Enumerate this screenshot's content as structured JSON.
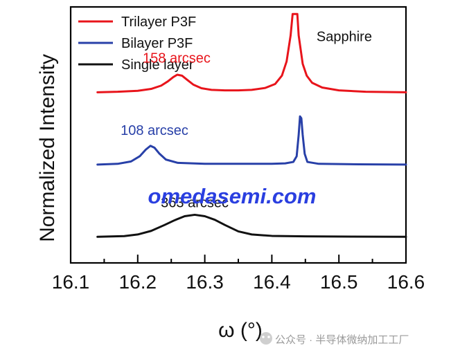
{
  "chart_data": {
    "type": "line",
    "xlabel": "ω (°)",
    "ylabel": "Normalized Intensity",
    "xlim": [
      16.1,
      16.6
    ],
    "x_ticks": [
      "16.1",
      "16.2",
      "16.3",
      "16.4",
      "16.5",
      "16.6"
    ],
    "y_ticks_visible": false,
    "legend_position": "top-left",
    "series": [
      {
        "name": "Trilayer P3F",
        "color": "#e8141b",
        "baseline": 0.72,
        "points": [
          [
            16.14,
            0.72
          ],
          [
            16.17,
            0.722
          ],
          [
            16.2,
            0.726
          ],
          [
            16.22,
            0.734
          ],
          [
            16.235,
            0.748
          ],
          [
            16.245,
            0.766
          ],
          [
            16.253,
            0.784
          ],
          [
            16.259,
            0.794
          ],
          [
            16.266,
            0.79
          ],
          [
            16.274,
            0.772
          ],
          [
            16.283,
            0.752
          ],
          [
            16.295,
            0.737
          ],
          [
            16.31,
            0.73
          ],
          [
            16.33,
            0.728
          ],
          [
            16.35,
            0.728
          ],
          [
            16.37,
            0.73
          ],
          [
            16.39,
            0.738
          ],
          [
            16.405,
            0.755
          ],
          [
            16.415,
            0.79
          ],
          [
            16.422,
            0.85
          ],
          [
            16.428,
            0.96
          ],
          [
            16.431,
            1.05
          ],
          [
            16.438,
            1.05
          ],
          [
            16.44,
            0.96
          ],
          [
            16.446,
            0.84
          ],
          [
            16.452,
            0.79
          ],
          [
            16.46,
            0.76
          ],
          [
            16.475,
            0.74
          ],
          [
            16.5,
            0.728
          ],
          [
            16.54,
            0.722
          ],
          [
            16.6,
            0.72
          ]
        ]
      },
      {
        "name": "Bilayer P3F",
        "color": "#2840a8",
        "baseline": 0.415,
        "points": [
          [
            16.14,
            0.415
          ],
          [
            16.17,
            0.418
          ],
          [
            16.19,
            0.428
          ],
          [
            16.203,
            0.45
          ],
          [
            16.212,
            0.478
          ],
          [
            16.219,
            0.494
          ],
          [
            16.225,
            0.486
          ],
          [
            16.232,
            0.462
          ],
          [
            16.242,
            0.436
          ],
          [
            16.26,
            0.422
          ],
          [
            16.3,
            0.418
          ],
          [
            16.35,
            0.418
          ],
          [
            16.4,
            0.418
          ],
          [
            16.42,
            0.42
          ],
          [
            16.432,
            0.426
          ],
          [
            16.437,
            0.45
          ],
          [
            16.44,
            0.54
          ],
          [
            16.442,
            0.618
          ],
          [
            16.444,
            0.61
          ],
          [
            16.446,
            0.54
          ],
          [
            16.449,
            0.46
          ],
          [
            16.453,
            0.426
          ],
          [
            16.47,
            0.418
          ],
          [
            16.53,
            0.416
          ],
          [
            16.6,
            0.415
          ]
        ]
      },
      {
        "name": "Single layer",
        "color": "#111111",
        "baseline": 0.11,
        "points": [
          [
            16.14,
            0.11
          ],
          [
            16.18,
            0.113
          ],
          [
            16.2,
            0.12
          ],
          [
            16.22,
            0.135
          ],
          [
            16.24,
            0.16
          ],
          [
            16.255,
            0.18
          ],
          [
            16.27,
            0.197
          ],
          [
            16.285,
            0.203
          ],
          [
            16.3,
            0.197
          ],
          [
            16.315,
            0.182
          ],
          [
            16.33,
            0.16
          ],
          [
            16.35,
            0.133
          ],
          [
            16.37,
            0.12
          ],
          [
            16.4,
            0.114
          ],
          [
            16.45,
            0.112
          ],
          [
            16.52,
            0.111
          ],
          [
            16.6,
            0.11
          ]
        ]
      }
    ],
    "annotations": [
      {
        "text": "158 arcsec",
        "x": 16.258,
        "y": 0.845,
        "color": "#e8141b",
        "anchor": "middle"
      },
      {
        "text": "108 arcsec",
        "x": 16.225,
        "y": 0.54,
        "color": "#2840a8",
        "anchor": "middle"
      },
      {
        "text": "363 arcsec",
        "x": 16.285,
        "y": 0.235,
        "color": "#111111",
        "anchor": "middle"
      },
      {
        "text": "Sapphire",
        "x": 16.508,
        "y": 0.935,
        "color": "#111111",
        "anchor": "middle"
      }
    ],
    "overlay_text": [
      {
        "text": "omedasemi.com",
        "color": "#2a3fe0",
        "x": 16.335,
        "y": 0.38
      }
    ]
  },
  "watermark": {
    "text": "公众号 · 半导体微纳加工工厂"
  }
}
